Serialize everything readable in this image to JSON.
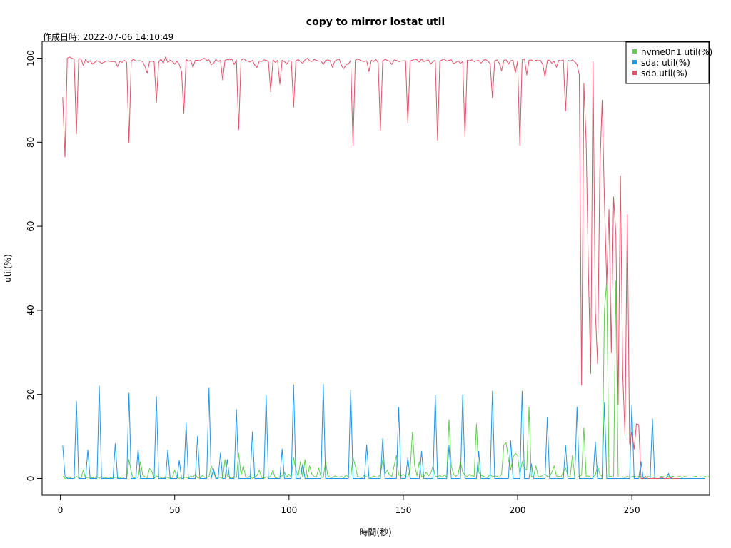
{
  "chart_data": {
    "type": "line",
    "title": "copy to mirror iostat util",
    "subtitle": "作成日時: 2022-07-06 14:10:49",
    "xlabel": "時間(秒)",
    "ylabel": "util(%)",
    "xlim": [
      -8,
      284
    ],
    "ylim": [
      -4,
      104
    ],
    "xticks": [
      0,
      50,
      100,
      150,
      200,
      250
    ],
    "yticks": [
      0,
      20,
      40,
      60,
      80,
      100
    ],
    "legend_position": "top-right",
    "x_start": 1,
    "x_step": 1,
    "series": [
      {
        "name": "nvme0n1 util(%)",
        "color": "#61d04f",
        "values": [
          0.5,
          0,
          0.2,
          0.3,
          0,
          0,
          0.5,
          0.2,
          0,
          2,
          0,
          0.3,
          0,
          0.2,
          0,
          0.5,
          0,
          0.5,
          0,
          0.2,
          0.3,
          0.2,
          0,
          0.3,
          0.2,
          0,
          0.4,
          0,
          0,
          4.5,
          1.5,
          0,
          0.4,
          0.2,
          4,
          0.8,
          0.4,
          0.2,
          2.4,
          1.7,
          0,
          0.6,
          0.4,
          0.2,
          0,
          0.3,
          0.2,
          0,
          0.3,
          2,
          0.2,
          0,
          0.4,
          0.2,
          0.3,
          0,
          0.6,
          0.3,
          1,
          0.2,
          0,
          0.7,
          0.3,
          0.2,
          0.4,
          3,
          1.5,
          0,
          0.3,
          0.2,
          0,
          4.5,
          0.6,
          0.3,
          0,
          0.4,
          0.2,
          6,
          0.8,
          3,
          0.4,
          0.2,
          0.6,
          0,
          0.3,
          0.7,
          2,
          0.3,
          0,
          0.4,
          0.2,
          0.6,
          2,
          0,
          0.3,
          0.4,
          0.7,
          1.5,
          0.3,
          1,
          0.3,
          5,
          2,
          0.5,
          4,
          0.3,
          4.5,
          0.2,
          3,
          1,
          0.5,
          0.3,
          2.5,
          0.4,
          0.2,
          4,
          0.6,
          0.3,
          0.2,
          0.6,
          0.4,
          0.3,
          0.5,
          0.2,
          0.8,
          0.4,
          0.3,
          5,
          3,
          0.5,
          0.3,
          0.2,
          0.8,
          0.4,
          0.3,
          0.2,
          0.6,
          0.4,
          0.3,
          1,
          4.5,
          1,
          2,
          0.8,
          0.5,
          3,
          5.5,
          0.8,
          0.6,
          1,
          0.5,
          0.3,
          2,
          11,
          3,
          0.6,
          4,
          0.4,
          0.5,
          1.5,
          0.6,
          1.2,
          3,
          0.5,
          0.4,
          0.7,
          0.3,
          0.8,
          0.4,
          14,
          3,
          1,
          0.5,
          1,
          4,
          1.5,
          0.8,
          0.4,
          1,
          0.6,
          0.5,
          13,
          1.5,
          0.8,
          0.5,
          0.3,
          0.2,
          1,
          0.4,
          0.6,
          0.5,
          0.3,
          1,
          8,
          8.5,
          4.5,
          2,
          5,
          6,
          5.5,
          0.8,
          4,
          2.5,
          2,
          17,
          0.5,
          0.4,
          3,
          0.5,
          0.4,
          0.8,
          1,
          0.5,
          0.4,
          1.5,
          3,
          0.6,
          0.5,
          0.4,
          1.5,
          2.5,
          0.6,
          0.3,
          5.5,
          0.4,
          0.3,
          0.5,
          0.8,
          12,
          0.5,
          0.6,
          0.3,
          0.4,
          0.8,
          3,
          1,
          0.5,
          40,
          47,
          0.4,
          0.5,
          0.3,
          47,
          0.4,
          0.3,
          0.4,
          0.2,
          0.5,
          0.3,
          0.4,
          0.6,
          0.3,
          0.5,
          0.4,
          0.3,
          0.2,
          0.5,
          0.4,
          0.3,
          0.2,
          0.4,
          0.3,
          0.5,
          0.4,
          0.3,
          0.6,
          0.4,
          0.5,
          0.3,
          0.4,
          0.5,
          0.2,
          0.5,
          0.4,
          0.3,
          0.3,
          0.4,
          0.5,
          0.3,
          0.4,
          0.3,
          0.5,
          0.3,
          0.6
        ]
      },
      {
        "name": "sda: util(%)",
        "color": "#2297e6",
        "values": [
          7.8,
          0.5,
          0,
          0,
          0,
          0,
          18.3,
          0,
          0,
          0,
          0,
          6.8,
          0,
          0,
          0,
          0,
          22,
          0,
          0,
          0,
          0,
          0,
          0,
          8.3,
          0,
          0,
          0,
          0,
          0,
          20.3,
          0,
          0,
          0,
          7.1,
          0,
          0,
          0,
          0,
          0,
          0,
          0,
          19.5,
          0,
          0,
          0,
          0,
          6.8,
          0,
          0,
          0,
          0,
          4.3,
          0,
          0,
          13.2,
          0,
          0,
          0,
          0,
          10,
          0,
          0,
          0,
          0,
          21.5,
          0,
          2.3,
          0,
          0,
          6,
          0,
          0,
          4.5,
          0,
          0,
          0,
          16.4,
          0,
          0,
          0,
          0,
          0,
          0,
          11.1,
          0,
          0,
          0,
          0,
          0,
          19.8,
          0,
          0,
          0,
          0,
          0,
          0,
          7,
          0,
          0,
          0,
          0,
          22.3,
          0,
          0,
          0,
          3.4,
          0,
          0,
          0,
          0,
          0,
          0,
          0,
          0,
          22.4,
          0,
          0,
          0,
          0,
          0,
          0,
          0,
          0,
          0,
          0,
          0,
          21.1,
          0,
          0,
          0,
          0,
          0,
          0,
          8,
          0,
          0,
          0,
          0,
          0,
          0,
          9.5,
          0,
          0,
          0,
          0,
          0,
          0,
          16.9,
          0,
          0,
          0,
          5,
          0,
          0,
          0,
          0,
          0,
          6.5,
          0,
          0,
          0,
          0,
          0,
          19.9,
          0,
          0,
          0,
          0,
          0,
          7.8,
          0,
          0,
          0,
          0,
          0,
          19.9,
          0,
          0,
          0,
          0,
          0,
          0,
          6.5,
          0,
          0,
          0,
          0,
          0,
          20.8,
          0,
          0,
          0,
          0,
          0,
          0,
          0,
          9,
          0,
          0,
          0,
          0,
          20.8,
          0,
          0,
          0,
          3.5,
          0,
          0,
          0,
          0,
          0,
          0,
          14.6,
          0,
          0,
          0,
          0,
          0,
          0,
          0,
          7.8,
          0,
          0,
          0,
          0,
          17,
          0,
          0,
          0,
          0,
          0,
          0,
          0,
          8.7,
          0,
          0,
          0,
          18,
          0,
          0,
          0,
          0,
          0,
          0,
          0,
          0,
          0,
          0,
          0,
          17.4,
          0,
          0,
          0,
          4,
          0,
          0,
          0,
          0,
          14.2,
          0,
          0,
          0,
          0,
          0,
          0,
          1.2,
          0,
          0,
          0,
          0,
          0,
          0,
          0,
          0,
          0,
          0,
          0,
          0,
          0,
          0,
          0,
          0
        ]
      },
      {
        "name": "sdb util(%)",
        "color": "#df536b",
        "values": [
          90.7,
          76.5,
          100,
          100.3,
          100,
          99.8,
          82,
          99.9,
          99.8,
          98.3,
          99.7,
          99,
          99.4,
          98.6,
          99,
          99.4,
          99.2,
          98.8,
          99,
          99.3,
          99.3,
          99.2,
          99.2,
          99.2,
          98,
          99.3,
          99,
          99.5,
          99,
          80,
          99.3,
          99.8,
          99.3,
          99.4,
          99.4,
          99.2,
          98,
          96.4,
          99.2,
          99.3,
          99.2,
          89.5,
          99.1,
          99.8,
          98.8,
          100.3,
          99,
          99.5,
          99.2,
          98.6,
          99.3,
          98.5,
          96.8,
          86.8,
          99.7,
          99.3,
          99.5,
          97.8,
          99.5,
          99.5,
          99.4,
          99.8,
          100,
          99.5,
          99.6,
          98.5,
          98.8,
          99.7,
          99.2,
          99.5,
          94.8,
          99.5,
          99.7,
          99.6,
          99.8,
          98.5,
          99.6,
          83,
          99.5,
          99.9,
          99.5,
          99.3,
          99.1,
          99.5,
          98.4,
          97.8,
          99.3,
          99.2,
          99.6,
          99.5,
          99.2,
          92,
          99.6,
          99,
          99.5,
          93.8,
          99.5,
          99.2,
          98.6,
          99.4,
          99.3,
          88.3,
          99.4,
          99.7,
          99.2,
          98.8,
          99.6,
          100,
          99.4,
          99.2,
          99.7,
          99.5,
          99.3,
          99.4,
          98.5,
          99.5,
          99.6,
          99.4,
          97.8,
          99.3,
          99.6,
          99.8,
          98.2,
          97.5,
          98.5,
          98.6,
          99.5,
          79.2,
          99.5,
          99.8,
          99.6,
          99.3,
          99.2,
          99.4,
          96.8,
          99.5,
          99.2,
          99.7,
          99,
          82.8,
          99.4,
          99.7,
          99.5,
          99.3,
          98.5,
          99.6,
          99.5,
          99.2,
          99.3,
          99.4,
          99.4,
          84.5,
          99.4,
          99.5,
          99.8,
          99.6,
          99.1,
          99.8,
          99.2,
          99.4,
          99.6,
          98.6,
          99.2,
          99.5,
          80.5,
          99.3,
          99.6,
          99.8,
          99.3,
          99.5,
          99.6,
          98.7,
          99,
          99.4,
          98.8,
          99.2,
          81.3,
          99.5,
          99.4,
          99.6,
          99.2,
          99.4,
          99.5,
          98.8,
          99.5,
          99.7,
          99.3,
          98.7,
          90.5,
          99.4,
          99.6,
          98.8,
          97,
          99.5,
          99.6,
          98.6,
          99.4,
          99.5,
          96.5,
          99.3,
          79.2,
          99.6,
          99.8,
          96,
          99.5,
          99.6,
          99.3,
          99.5,
          99.4,
          99.5,
          98.5,
          95.6,
          99.4,
          99.6,
          98.8,
          99.3,
          97.8,
          99.5,
          99.4,
          99.6,
          87.5,
          99.5,
          99.3,
          99.6,
          99.2,
          98.5,
          96,
          22.2,
          94,
          80,
          48.6,
          25,
          99.2,
          40,
          27.3,
          74,
          90,
          66,
          46.2,
          64,
          29.9,
          67,
          58,
          17.5,
          72,
          25,
          10.2,
          62.8,
          8.2,
          11,
          7,
          13,
          12.8,
          0,
          0,
          0.5,
          0,
          0,
          0,
          0,
          0,
          0,
          0.3,
          0,
          0,
          0,
          0.2,
          0,
          0,
          0,
          0
        ]
      }
    ]
  }
}
